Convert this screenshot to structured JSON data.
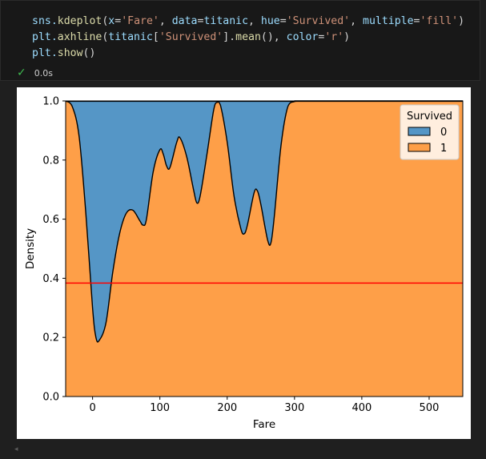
{
  "code": {
    "lines": [
      [
        {
          "t": "sns.",
          "c": "var"
        },
        {
          "t": "kdeplot",
          "c": "fn"
        },
        {
          "t": "(",
          "c": "op"
        },
        {
          "t": "x",
          "c": "var"
        },
        {
          "t": "=",
          "c": "op"
        },
        {
          "t": "'Fare'",
          "c": "str"
        },
        {
          "t": ", ",
          "c": "op"
        },
        {
          "t": "data",
          "c": "var"
        },
        {
          "t": "=",
          "c": "op"
        },
        {
          "t": "titanic",
          "c": "var"
        },
        {
          "t": ", ",
          "c": "op"
        },
        {
          "t": "hue",
          "c": "var"
        },
        {
          "t": "=",
          "c": "op"
        },
        {
          "t": "'Survived'",
          "c": "str"
        },
        {
          "t": ", ",
          "c": "op"
        },
        {
          "t": "multiple",
          "c": "var"
        },
        {
          "t": "=",
          "c": "op"
        },
        {
          "t": "'fill'",
          "c": "str"
        },
        {
          "t": ")",
          "c": "op"
        }
      ],
      [
        {
          "t": "plt.",
          "c": "var"
        },
        {
          "t": "axhline",
          "c": "fn"
        },
        {
          "t": "(",
          "c": "op"
        },
        {
          "t": "titanic",
          "c": "var"
        },
        {
          "t": "[",
          "c": "op"
        },
        {
          "t": "'Survived'",
          "c": "str"
        },
        {
          "t": "].",
          "c": "op"
        },
        {
          "t": "mean",
          "c": "fn"
        },
        {
          "t": "(), ",
          "c": "op"
        },
        {
          "t": "color",
          "c": "var"
        },
        {
          "t": "=",
          "c": "op"
        },
        {
          "t": "'r'",
          "c": "str"
        },
        {
          "t": ")",
          "c": "op"
        }
      ],
      [
        {
          "t": "plt.",
          "c": "var"
        },
        {
          "t": "show",
          "c": "fn"
        },
        {
          "t": "()",
          "c": "op"
        }
      ]
    ]
  },
  "status": {
    "time": "0.0s",
    "icon": "check-icon"
  },
  "chart_data": {
    "type": "area",
    "xlabel": "Fare",
    "ylabel": "Density",
    "xlim": [
      -40,
      550
    ],
    "ylim": [
      0,
      1.0
    ],
    "xticks": [
      0,
      100,
      200,
      300,
      400,
      500
    ],
    "yticks": [
      0.0,
      0.2,
      0.4,
      0.6,
      0.8,
      1.0
    ],
    "ytick_labels": [
      "0.0",
      "0.2",
      "0.4",
      "0.6",
      "0.8",
      "1.0"
    ],
    "legend": {
      "title": "Survived",
      "placement": "top-right",
      "entries": [
        "0",
        "1"
      ]
    },
    "series": [
      {
        "name": "0",
        "color": "#5596c6"
      },
      {
        "name": "1",
        "color": "#fe9f48"
      }
    ],
    "boundary": {
      "x": [
        -40,
        -30,
        -20,
        -10,
        0,
        5,
        10,
        20,
        30,
        40,
        50,
        60,
        70,
        75,
        80,
        90,
        100,
        105,
        110,
        115,
        125,
        130,
        140,
        150,
        155,
        160,
        170,
        180,
        185,
        190,
        200,
        210,
        220,
        225,
        230,
        240,
        245,
        250,
        260,
        265,
        270,
        280,
        290,
        300,
        310,
        320,
        550
      ],
      "y": [
        1.0,
        0.98,
        0.88,
        0.62,
        0.3,
        0.2,
        0.19,
        0.25,
        0.42,
        0.55,
        0.62,
        0.63,
        0.595,
        0.58,
        0.6,
        0.76,
        0.835,
        0.82,
        0.78,
        0.775,
        0.86,
        0.875,
        0.81,
        0.7,
        0.655,
        0.68,
        0.82,
        0.97,
        0.995,
        0.985,
        0.86,
        0.68,
        0.57,
        0.55,
        0.58,
        0.69,
        0.695,
        0.65,
        0.53,
        0.52,
        0.61,
        0.85,
        0.98,
        0.998,
        1.0,
        1.0,
        1.0
      ]
    },
    "hline": {
      "y": 0.3838,
      "color": "#ff0000"
    }
  }
}
